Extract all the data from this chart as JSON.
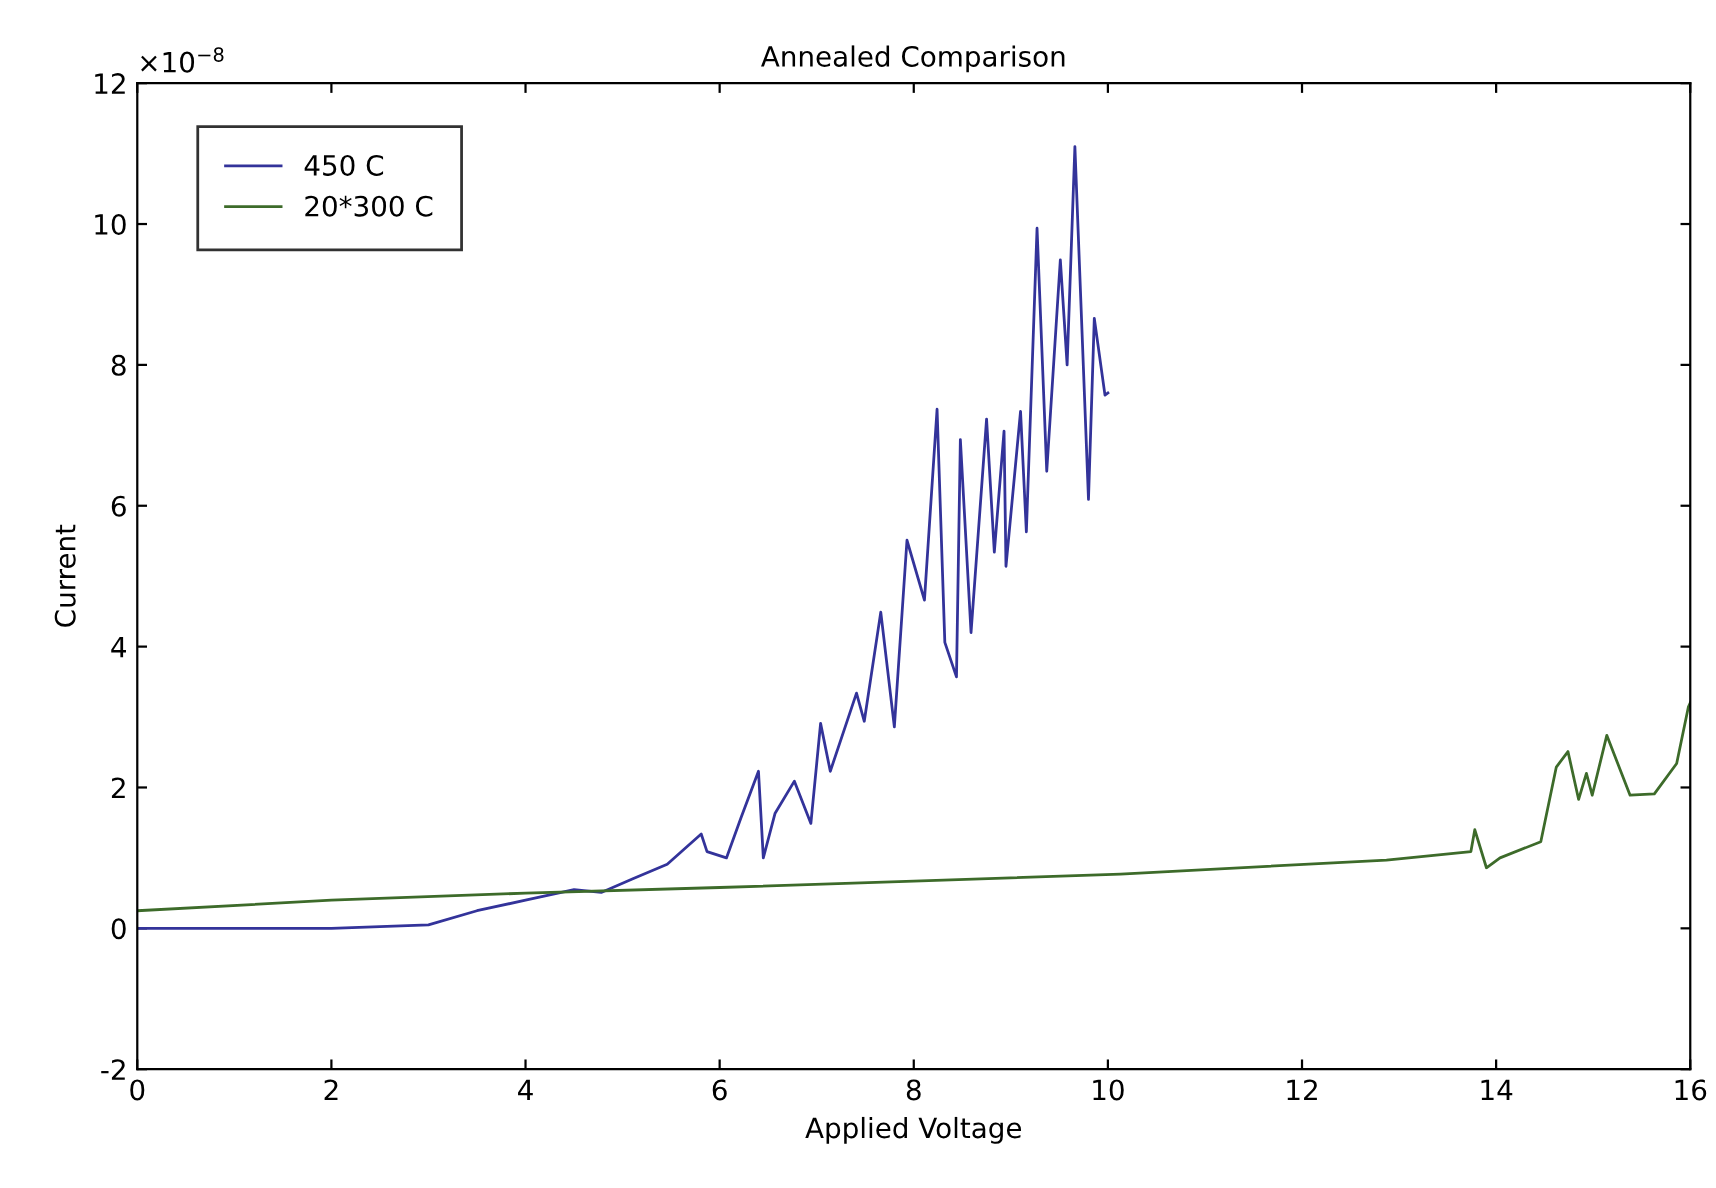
{
  "chart_data": {
    "type": "line",
    "title": "Annealed Comparison",
    "xlabel": "Applied Voltage",
    "ylabel": "Current",
    "annotations": [
      "×10$^{−8}$"
    ],
    "xlim": [
      0,
      16
    ],
    "xticks": [
      0,
      2,
      4,
      6,
      8,
      10,
      12,
      14,
      16
    ],
    "ylim": [
      -2,
      12
    ],
    "yticks": [
      -2,
      0,
      2,
      4,
      6,
      8,
      10,
      12
    ],
    "legend": "top left",
    "grid": false,
    "series": [
      {
        "name": "450 C",
        "color": "#33339a",
        "x": [
          0,
          1,
          2,
          3,
          3.5,
          4,
          4.5,
          4.78,
          5.1,
          5.46,
          5.81,
          5.87,
          6.07,
          6.22,
          6.4,
          6.45,
          6.57,
          6.77,
          6.94,
          7.04,
          7.14,
          7.41,
          7.49,
          7.66,
          7.8,
          7.93,
          8.11,
          8.24,
          8.32,
          8.44,
          8.48,
          8.59,
          8.75,
          8.83,
          8.93,
          8.95,
          9.1,
          9.16,
          9.27,
          9.37,
          9.51,
          9.58,
          9.66,
          9.8,
          9.86,
          9.97,
          10
        ],
        "values": [
          0,
          0,
          0,
          0.05,
          0.25,
          0.4,
          0.55,
          0.51,
          0.7,
          0.91,
          1.34,
          1.09,
          1.0,
          1.57,
          2.23,
          1.0,
          1.63,
          2.09,
          1.49,
          2.91,
          2.23,
          3.34,
          2.94,
          4.49,
          2.86,
          5.51,
          4.66,
          7.37,
          4.06,
          3.57,
          6.94,
          4.2,
          7.23,
          5.34,
          7.06,
          5.14,
          7.34,
          5.63,
          9.94,
          6.49,
          9.49,
          8.0,
          11.1,
          6.09,
          8.66,
          7.57,
          7.6
        ]
      },
      {
        "name": "20*300 C",
        "color": "#3d6b2a",
        "x": [
          0,
          2,
          4,
          6,
          8,
          10.13,
          12.87,
          13.74,
          13.78,
          13.9,
          14.04,
          14.46,
          14.62,
          14.74,
          14.85,
          14.93,
          14.99,
          15.14,
          15.38,
          15.63,
          15.86,
          15.98,
          16
        ],
        "values": [
          0.25,
          0.4,
          0.5,
          0.58,
          0.67,
          0.77,
          0.97,
          1.09,
          1.4,
          0.86,
          1.0,
          1.23,
          2.29,
          2.51,
          1.83,
          2.2,
          1.89,
          2.74,
          1.89,
          1.91,
          2.34,
          3.14,
          3.2
        ]
      }
    ]
  }
}
